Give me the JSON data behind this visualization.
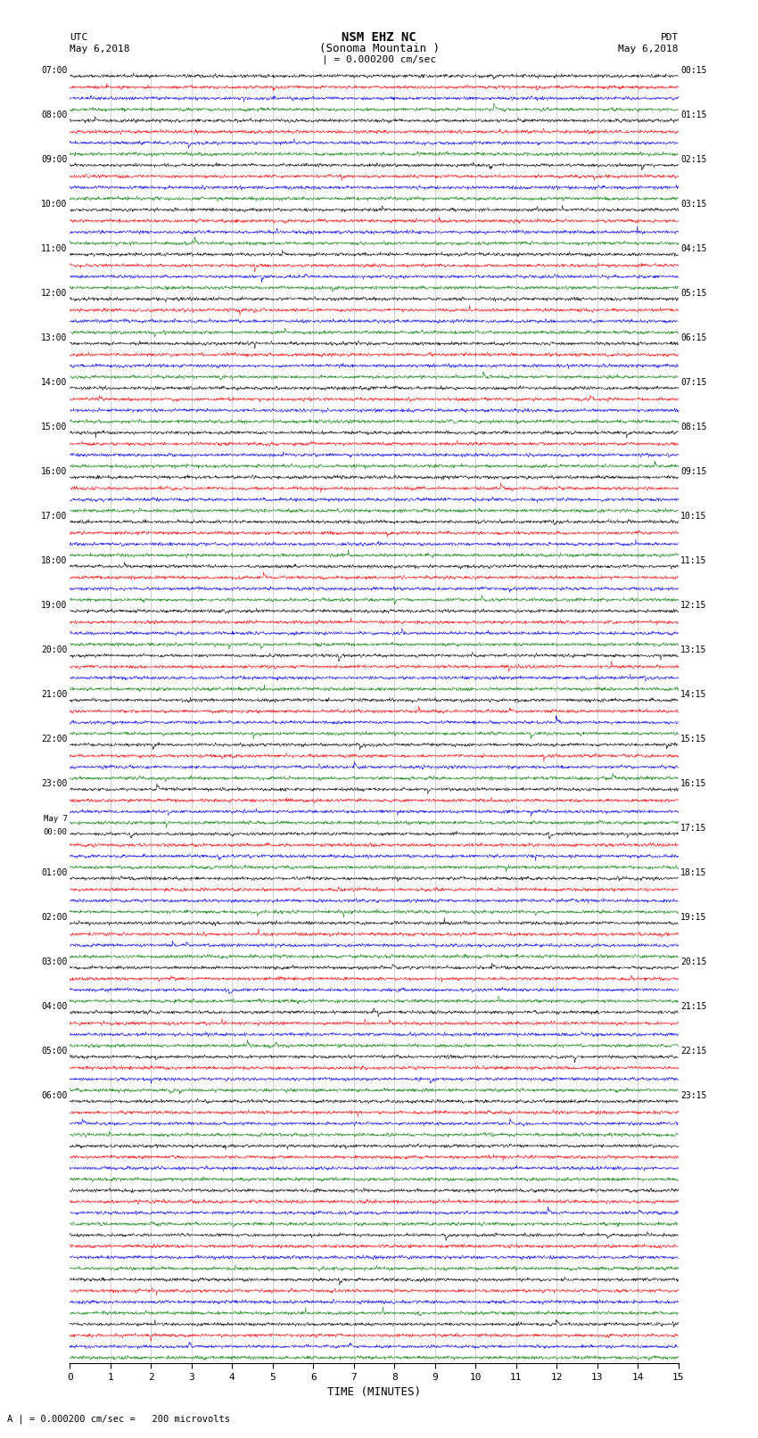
{
  "title_line1": "NSM EHZ NC",
  "title_line2": "(Sonoma Mountain )",
  "title_line3": "| = 0.000200 cm/sec",
  "left_header_line1": "UTC",
  "left_header_line2": "May 6,2018",
  "right_header_line1": "PDT",
  "right_header_line2": "May 6,2018",
  "footer": "A | = 0.000200 cm/sec =   200 microvolts",
  "xlabel": "TIME (MINUTES)",
  "xmin": 0,
  "xmax": 15,
  "xticks": [
    0,
    1,
    2,
    3,
    4,
    5,
    6,
    7,
    8,
    9,
    10,
    11,
    12,
    13,
    14,
    15
  ],
  "utc_times": [
    "07:00",
    "",
    "",
    "",
    "08:00",
    "",
    "",
    "",
    "09:00",
    "",
    "",
    "",
    "10:00",
    "",
    "",
    "",
    "11:00",
    "",
    "",
    "",
    "12:00",
    "",
    "",
    "",
    "13:00",
    "",
    "",
    "",
    "14:00",
    "",
    "",
    "",
    "15:00",
    "",
    "",
    "",
    "16:00",
    "",
    "",
    "",
    "17:00",
    "",
    "",
    "",
    "18:00",
    "",
    "",
    "",
    "19:00",
    "",
    "",
    "",
    "20:00",
    "",
    "",
    "",
    "21:00",
    "",
    "",
    "",
    "22:00",
    "",
    "",
    "",
    "23:00",
    "",
    "",
    "",
    "May 7\n00:00",
    "",
    "",
    "",
    "01:00",
    "",
    "",
    "",
    "02:00",
    "",
    "",
    "",
    "03:00",
    "",
    "",
    "",
    "04:00",
    "",
    "",
    "",
    "05:00",
    "",
    "",
    "",
    "06:00",
    "",
    ""
  ],
  "pdt_times": [
    "00:15",
    "",
    "",
    "",
    "01:15",
    "",
    "",
    "",
    "02:15",
    "",
    "",
    "",
    "03:15",
    "",
    "",
    "",
    "04:15",
    "",
    "",
    "",
    "05:15",
    "",
    "",
    "",
    "06:15",
    "",
    "",
    "",
    "07:15",
    "",
    "",
    "",
    "08:15",
    "",
    "",
    "",
    "09:15",
    "",
    "",
    "",
    "10:15",
    "",
    "",
    "",
    "11:15",
    "",
    "",
    "",
    "12:15",
    "",
    "",
    "",
    "13:15",
    "",
    "",
    "",
    "14:15",
    "",
    "",
    "",
    "15:15",
    "",
    "",
    "",
    "16:15",
    "",
    "",
    "",
    "17:15",
    "",
    "",
    "",
    "18:15",
    "",
    "",
    "",
    "19:15",
    "",
    "",
    "",
    "20:15",
    "",
    "",
    "",
    "21:15",
    "",
    "",
    "",
    "22:15",
    "",
    "",
    "",
    "23:15",
    "",
    ""
  ],
  "colors": [
    "black",
    "red",
    "blue",
    "green"
  ],
  "n_rows": 116,
  "n_pts": 2000,
  "noise_amplitude": 0.06,
  "background_color": "white",
  "line_linewidth": 0.35,
  "seed": 42
}
